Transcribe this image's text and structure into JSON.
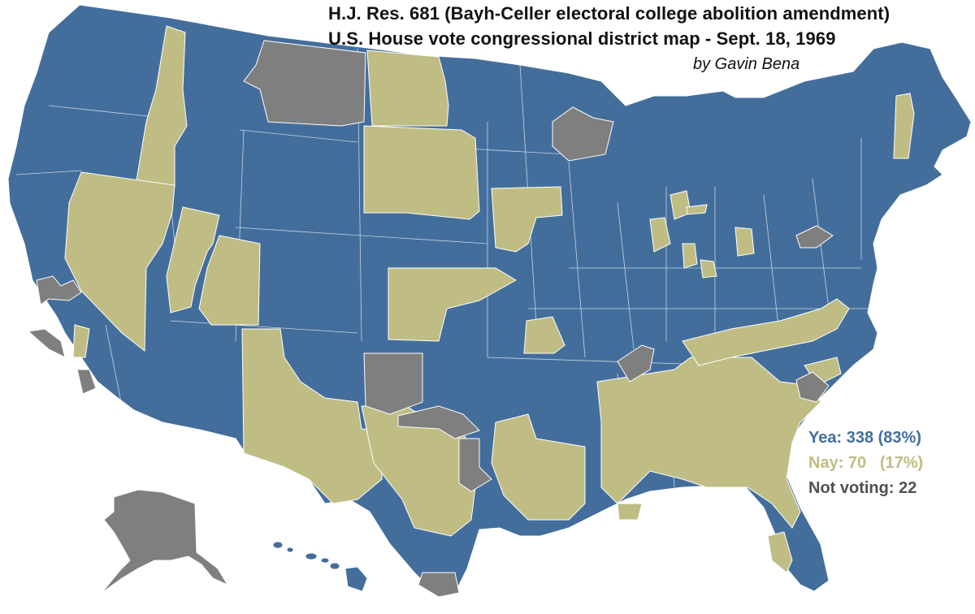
{
  "title_line1": "H.J. Res. 681 (Bayh-Celler electoral college abolition amendment)",
  "title_line2": "U.S. House vote congressional district map - Sept. 18, 1969",
  "author": "by Gavin Bena",
  "legend": {
    "yea": "Yea: 338 (83%)",
    "nay": "Nay: 70   (17%)",
    "not_voting": "Not voting: 22"
  },
  "colors": {
    "yea": "#436e9c",
    "nay": "#bfbd84",
    "not_voting": "#7f7f7f",
    "border": "#ffffff",
    "legend_not_voting_text": "#505050"
  }
}
